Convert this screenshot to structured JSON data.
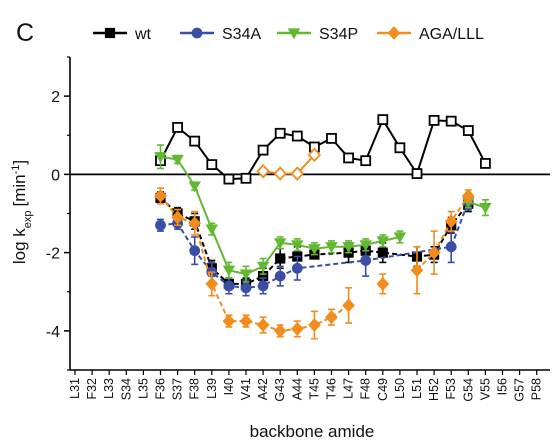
{
  "panel_label": "C",
  "chart_data": {
    "type": "line",
    "title": "",
    "xlabel": "backbone amide",
    "ylabel": {
      "prefix": "log k",
      "subscript": "exp",
      "unit": "[min",
      "unit_superscript": "-1",
      "unit_suffix": "]"
    },
    "categories": [
      "L31",
      "F32",
      "L33",
      "S34",
      "L35",
      "F36",
      "S37",
      "F38",
      "L39",
      "I40",
      "V41",
      "A42",
      "G43",
      "A44",
      "T45",
      "T46",
      "L47",
      "F48",
      "C49",
      "L50",
      "L51",
      "H52",
      "F53",
      "G54",
      "V55",
      "I56",
      "G57",
      "P58"
    ],
    "ylim": [
      -5,
      3
    ],
    "yticks": [
      -4,
      -2,
      0,
      2
    ],
    "ytick_labels": [
      "-4",
      "-2",
      "0",
      "2"
    ],
    "zero_line": true,
    "grid": false,
    "legend_position": "top",
    "series": [
      {
        "name": "wt",
        "color": "#000000",
        "marker": "square",
        "segments": [
          {
            "style": "open",
            "line": "solid",
            "points": [
              {
                "x": "F36",
                "y": 0.35
              },
              {
                "x": "S37",
                "y": 1.2
              },
              {
                "x": "F38",
                "y": 0.85
              },
              {
                "x": "L39",
                "y": 0.25
              },
              {
                "x": "I40",
                "y": -0.12
              },
              {
                "x": "V41",
                "y": -0.1
              },
              {
                "x": "A42",
                "y": 0.62
              },
              {
                "x": "G43",
                "y": 1.05
              },
              {
                "x": "A44",
                "y": 0.98
              },
              {
                "x": "T45",
                "y": 0.7
              },
              {
                "x": "T46",
                "y": 0.92
              },
              {
                "x": "L47",
                "y": 0.42
              },
              {
                "x": "F48",
                "y": 0.35
              },
              {
                "x": "C49",
                "y": 1.4
              },
              {
                "x": "L50",
                "y": 0.68
              },
              {
                "x": "L51",
                "y": 0.02
              },
              {
                "x": "H52",
                "y": 1.38
              },
              {
                "x": "F53",
                "y": 1.36
              },
              {
                "x": "G54",
                "y": 1.12
              },
              {
                "x": "V55",
                "y": 0.28
              }
            ]
          },
          {
            "style": "filled",
            "line": "dashed",
            "points": [
              {
                "x": "F36",
                "y": -0.6,
                "err": 0.15
              },
              {
                "x": "S37",
                "y": -1.0,
                "err": 0.15
              },
              {
                "x": "F38",
                "y": -1.2,
                "err": 0.2
              },
              {
                "x": "L39",
                "y": -2.4,
                "err": 0.2
              },
              {
                "x": "I40",
                "y": -2.8,
                "err": 0.15
              },
              {
                "x": "V41",
                "y": -2.8,
                "err": 0.15
              },
              {
                "x": "A42",
                "y": -2.6,
                "err": 0.2
              },
              {
                "x": "G43",
                "y": -2.15,
                "err": 0.25
              },
              {
                "x": "A44",
                "y": -2.1,
                "err": 0.25
              },
              {
                "x": "T45",
                "y": -2.05,
                "err": 0.1
              },
              {
                "x": "L47",
                "y": -2.0,
                "err": 0.25
              },
              {
                "x": "F48",
                "y": -1.95,
                "err": 0.2
              },
              {
                "x": "C49",
                "y": -2.0,
                "err": 0.25
              },
              {
                "x": "L51",
                "y": -2.1,
                "err": 0.25
              },
              {
                "x": "H52",
                "y": -2.05,
                "err": 0.2
              },
              {
                "x": "F53",
                "y": -1.3,
                "err": 0.2
              },
              {
                "x": "G54",
                "y": -0.75,
                "err": 0.2
              }
            ]
          }
        ]
      },
      {
        "name": "S34A",
        "color": "#3a4ea5",
        "marker": "circle",
        "segments": [
          {
            "style": "filled",
            "line": "dashed",
            "points": [
              {
                "x": "F36",
                "y": -1.3,
                "err": 0.15
              },
              {
                "x": "S37",
                "y": -1.25,
                "err": 0.15
              },
              {
                "x": "F38",
                "y": -1.95,
                "err": 0.35
              },
              {
                "x": "L39",
                "y": -2.5,
                "err": 0.25
              },
              {
                "x": "I40",
                "y": -2.85,
                "err": 0.2
              },
              {
                "x": "V41",
                "y": -2.9,
                "err": 0.2
              },
              {
                "x": "A42",
                "y": -2.85,
                "err": 0.2
              },
              {
                "x": "G43",
                "y": -2.6,
                "err": 0.25
              },
              {
                "x": "A44",
                "y": -2.4,
                "err": 0.3
              },
              {
                "x": "F48",
                "y": -2.2,
                "err": 0.4
              },
              {
                "x": "F53",
                "y": -1.85,
                "err": 0.4
              },
              {
                "x": "G54",
                "y": -0.7,
                "err": 0.2
              }
            ]
          }
        ]
      },
      {
        "name": "S34P",
        "color": "#62b832",
        "marker": "triangle-down",
        "segments": [
          {
            "style": "filled",
            "line": "solid",
            "points": [
              {
                "x": "F36",
                "y": 0.45,
                "err": 0.3
              },
              {
                "x": "S37",
                "y": 0.38,
                "err": 0.1
              },
              {
                "x": "F38",
                "y": -0.3,
                "err": 0.1
              },
              {
                "x": "L39",
                "y": -1.4,
                "err": 0.15
              },
              {
                "x": "I40",
                "y": -2.45,
                "err": 0.2
              },
              {
                "x": "V41",
                "y": -2.55,
                "err": 0.2
              },
              {
                "x": "A42",
                "y": -2.35,
                "err": 0.2
              },
              {
                "x": "G43",
                "y": -1.75,
                "err": 0.15
              },
              {
                "x": "A44",
                "y": -1.8,
                "err": 0.15
              },
              {
                "x": "T45",
                "y": -1.9,
                "err": 0.15
              },
              {
                "x": "T46",
                "y": -1.85,
                "err": 0.15
              },
              {
                "x": "L47",
                "y": -1.85,
                "err": 0.15
              },
              {
                "x": "F48",
                "y": -1.8,
                "err": 0.15
              },
              {
                "x": "C49",
                "y": -1.7,
                "err": 0.15
              },
              {
                "x": "L50",
                "y": -1.6,
                "err": 0.15
              }
            ]
          },
          {
            "style": "filled",
            "line": "solid",
            "points": [
              {
                "x": "G54",
                "y": -0.7,
                "err": 0.15
              },
              {
                "x": "V55",
                "y": -0.85,
                "err": 0.2
              }
            ]
          }
        ]
      },
      {
        "name": "AGA/LLL",
        "color": "#f28c1c",
        "marker": "diamond",
        "segments": [
          {
            "style": "open",
            "line": "solid",
            "points": [
              {
                "x": "A42",
                "y": 0.08
              },
              {
                "x": "G43",
                "y": 0.02
              },
              {
                "x": "A44",
                "y": 0.02
              },
              {
                "x": "T45",
                "y": 0.5
              }
            ]
          },
          {
            "style": "filled",
            "line": "dashed",
            "points": [
              {
                "x": "F36",
                "y": -0.55,
                "err": 0.2
              },
              {
                "x": "S37",
                "y": -1.1,
                "err": 0.2
              },
              {
                "x": "F38",
                "y": -1.25,
                "err": 0.3
              },
              {
                "x": "L39",
                "y": -2.8,
                "err": 0.3
              },
              {
                "x": "I40",
                "y": -3.75,
                "err": 0.15
              },
              {
                "x": "V41",
                "y": -3.75,
                "err": 0.15
              },
              {
                "x": "A42",
                "y": -3.85,
                "err": 0.2
              },
              {
                "x": "G43",
                "y": -4.0,
                "err": 0.15
              },
              {
                "x": "A44",
                "y": -3.95,
                "err": 0.2
              },
              {
                "x": "T45",
                "y": -3.85,
                "err": 0.35
              },
              {
                "x": "T46",
                "y": -3.65,
                "err": 0.2
              },
              {
                "x": "L47",
                "y": -3.35,
                "err": 0.45
              }
            ]
          },
          {
            "style": "filled",
            "line": "none",
            "points": [
              {
                "x": "C49",
                "y": -2.8,
                "err": 0.25
              }
            ]
          },
          {
            "style": "filled",
            "line": "dashed",
            "points": [
              {
                "x": "L51",
                "y": -2.45,
                "err": 0.6
              },
              {
                "x": "H52",
                "y": -2.0,
                "err": 0.55
              },
              {
                "x": "F53",
                "y": -1.2,
                "err": 0.25
              },
              {
                "x": "G54",
                "y": -0.55,
                "err": 0.15
              }
            ]
          }
        ]
      }
    ]
  }
}
